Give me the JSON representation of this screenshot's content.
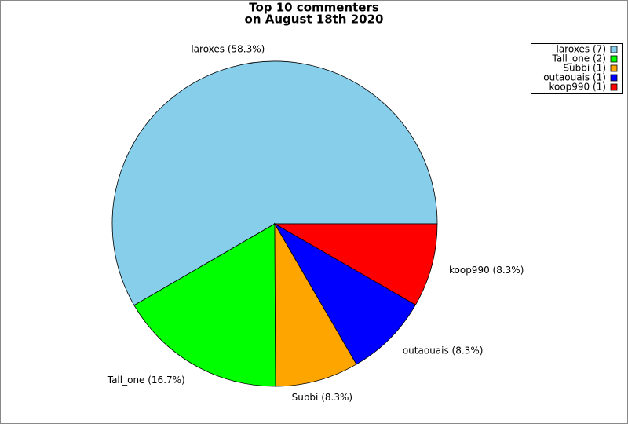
{
  "chart_data": {
    "type": "pie",
    "title": [
      "Top 10 commenters",
      "on August 18th 2020"
    ],
    "categories": [
      "laroxes (7)",
      "Tall_one (2)",
      "Subbi (1)",
      "outaouais (1)",
      "koop990 (1)"
    ],
    "values": [
      58.3,
      16.7,
      8.3,
      8.3,
      8.3
    ],
    "value_labels": [
      "laroxes (58.3%)",
      "Tall_one (16.7%)",
      "Subbi (8.3%)",
      "outaouais (8.3%)",
      "koop990 (8.3%)"
    ],
    "colors": [
      "#87ceeb",
      "#00ff00",
      "#ffa500",
      "#0000ff",
      "#ff0000"
    ],
    "legend": "upper right"
  }
}
